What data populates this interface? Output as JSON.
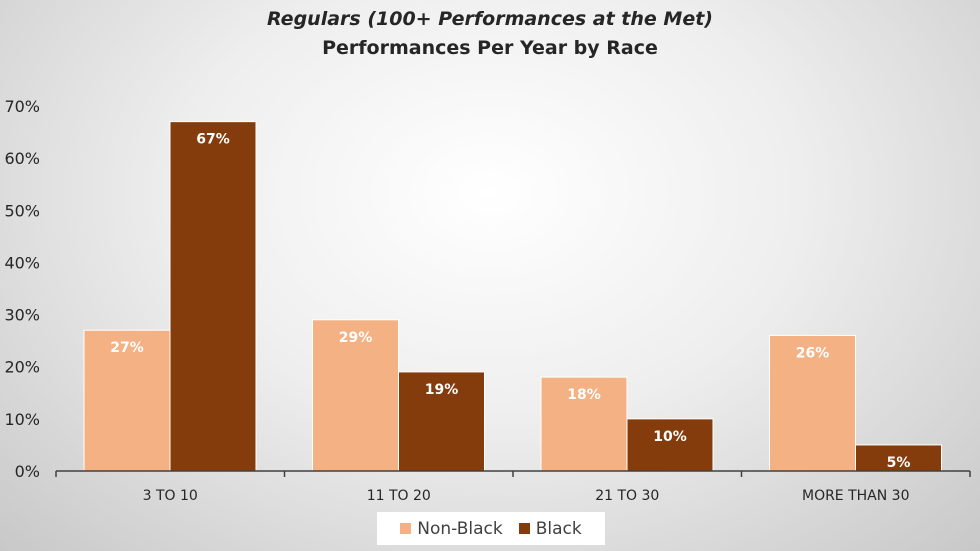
{
  "chart_data": {
    "type": "bar",
    "title": "Regulars (100+ Performances at the Met)",
    "subtitle": "Performances Per Year by Race",
    "categories": [
      "3 TO 10",
      "11 TO 20",
      "21 TO 30",
      "MORE THAN 30"
    ],
    "series": [
      {
        "name": "Non-Black",
        "color": "#F4B183",
        "values": [
          27,
          29,
          18,
          26
        ],
        "labels": [
          "27%",
          "29%",
          "18%",
          "26%"
        ]
      },
      {
        "name": "Black",
        "color": "#843C0C",
        "values": [
          67,
          19,
          10,
          5
        ],
        "labels": [
          "67%",
          "19%",
          "10%",
          "5%"
        ]
      }
    ],
    "yticks": [
      "0%",
      "10%",
      "20%",
      "30%",
      "40%",
      "50%",
      "60%",
      "70%"
    ],
    "ylim": [
      0,
      70
    ],
    "xlabel": "",
    "ylabel": "",
    "grid": false,
    "legend": "bottom"
  }
}
